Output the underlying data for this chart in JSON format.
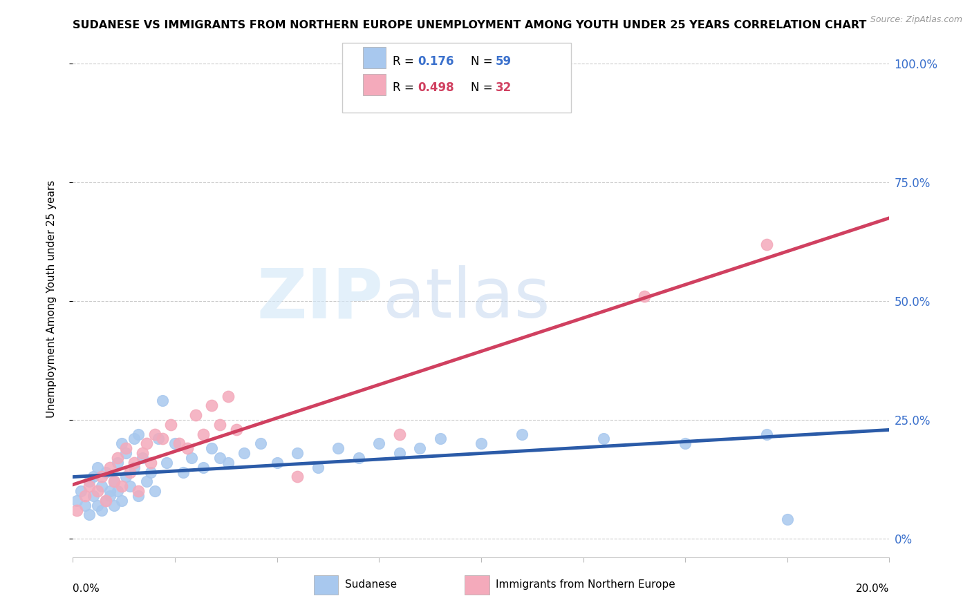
{
  "title": "SUDANESE VS IMMIGRANTS FROM NORTHERN EUROPE UNEMPLOYMENT AMONG YOUTH UNDER 25 YEARS CORRELATION CHART",
  "source": "Source: ZipAtlas.com",
  "ylabel": "Unemployment Among Youth under 25 years",
  "xmin": 0.0,
  "xmax": 0.2,
  "ymin": -0.04,
  "ymax": 1.05,
  "blue_color": "#A8C8EE",
  "pink_color": "#F4AABB",
  "blue_line_color": "#2B5BA8",
  "pink_line_color": "#D04060",
  "blue_R": 0.176,
  "blue_N": 59,
  "pink_R": 0.498,
  "pink_N": 32,
  "legend_label_blue": "Sudanese",
  "legend_label_pink": "Immigrants from Northern Europe",
  "yticks": [
    0.0,
    0.25,
    0.5,
    0.75,
    1.0
  ],
  "yticklabels": [
    "0%",
    "25.0%",
    "50.0%",
    "75.0%",
    "100.0%"
  ],
  "blue_scatter_x": [
    0.001,
    0.002,
    0.003,
    0.004,
    0.004,
    0.005,
    0.005,
    0.006,
    0.006,
    0.007,
    0.007,
    0.008,
    0.008,
    0.009,
    0.009,
    0.01,
    0.01,
    0.011,
    0.011,
    0.012,
    0.012,
    0.013,
    0.013,
    0.014,
    0.015,
    0.015,
    0.016,
    0.016,
    0.017,
    0.018,
    0.019,
    0.02,
    0.021,
    0.022,
    0.023,
    0.025,
    0.027,
    0.029,
    0.032,
    0.034,
    0.036,
    0.038,
    0.042,
    0.046,
    0.05,
    0.055,
    0.06,
    0.065,
    0.07,
    0.075,
    0.08,
    0.085,
    0.09,
    0.1,
    0.11,
    0.13,
    0.15,
    0.17,
    0.175
  ],
  "blue_scatter_y": [
    0.08,
    0.1,
    0.07,
    0.12,
    0.05,
    0.09,
    0.13,
    0.07,
    0.15,
    0.06,
    0.11,
    0.08,
    0.14,
    0.1,
    0.09,
    0.12,
    0.07,
    0.16,
    0.1,
    0.08,
    0.2,
    0.13,
    0.18,
    0.11,
    0.21,
    0.15,
    0.22,
    0.09,
    0.17,
    0.12,
    0.14,
    0.1,
    0.21,
    0.29,
    0.16,
    0.2,
    0.14,
    0.17,
    0.15,
    0.19,
    0.17,
    0.16,
    0.18,
    0.2,
    0.16,
    0.18,
    0.15,
    0.19,
    0.17,
    0.2,
    0.18,
    0.19,
    0.21,
    0.2,
    0.22,
    0.21,
    0.2,
    0.22,
    0.04
  ],
  "pink_scatter_x": [
    0.001,
    0.003,
    0.004,
    0.006,
    0.007,
    0.008,
    0.009,
    0.01,
    0.011,
    0.012,
    0.013,
    0.014,
    0.015,
    0.016,
    0.017,
    0.018,
    0.019,
    0.02,
    0.022,
    0.024,
    0.026,
    0.028,
    0.03,
    0.032,
    0.034,
    0.036,
    0.038,
    0.04,
    0.055,
    0.08,
    0.14,
    0.17
  ],
  "pink_scatter_y": [
    0.06,
    0.09,
    0.11,
    0.1,
    0.13,
    0.08,
    0.15,
    0.12,
    0.17,
    0.11,
    0.19,
    0.14,
    0.16,
    0.1,
    0.18,
    0.2,
    0.16,
    0.22,
    0.21,
    0.24,
    0.2,
    0.19,
    0.26,
    0.22,
    0.28,
    0.24,
    0.3,
    0.23,
    0.13,
    0.22,
    0.51,
    0.62
  ]
}
